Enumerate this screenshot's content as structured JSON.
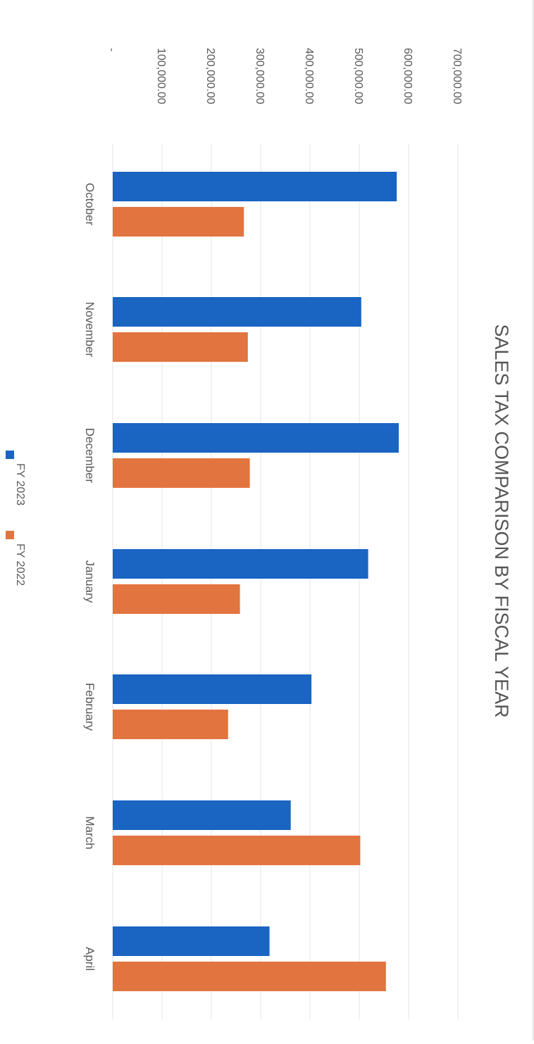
{
  "chart_data": {
    "type": "bar",
    "title": "SALES TAX COMPARISON BY FISCAL YEAR",
    "xlabel": "",
    "ylabel": "",
    "categories": [
      "October",
      "November",
      "December",
      "January",
      "February",
      "March",
      "April"
    ],
    "series": [
      {
        "name": "FY 2023",
        "color": "#1a64c2",
        "values": [
          576000,
          504000,
          580000,
          518000,
          403000,
          361000,
          318000
        ]
      },
      {
        "name": "FY 2022",
        "color": "#e2743f",
        "values": [
          266000,
          274000,
          278000,
          258000,
          234000,
          502000,
          554000
        ]
      }
    ],
    "y_ticks": [
      "-",
      "100,000.00",
      "200,000.00",
      "300,000.00",
      "400,000.00",
      "500,000.00",
      "600,000.00",
      "700,000.00"
    ],
    "ylim": [
      0,
      700000
    ],
    "grid": true,
    "legend_position": "bottom",
    "orientation": "rotated 90 degrees clockwise"
  }
}
